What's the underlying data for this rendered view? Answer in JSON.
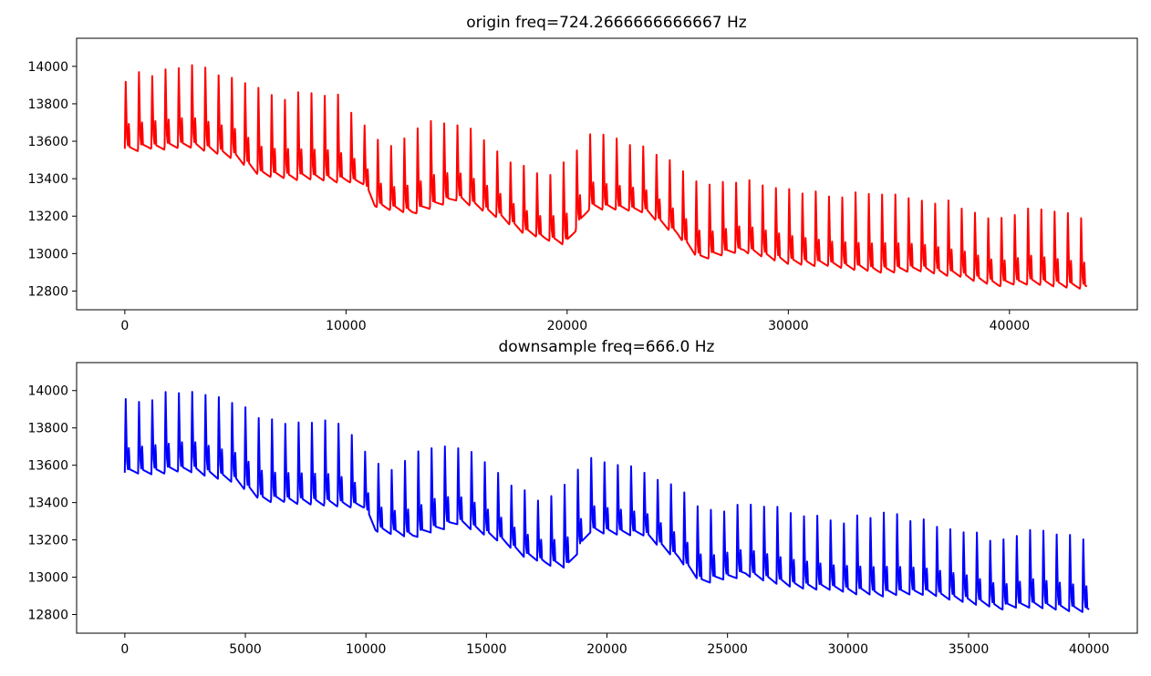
{
  "chart_data": [
    {
      "type": "line",
      "title": "origin freq=724.2666666666667 Hz",
      "xlabel": "",
      "ylabel": "",
      "xlim": [
        -2180,
        45780
      ],
      "ylim": [
        12700,
        14150
      ],
      "xticks": [
        0,
        10000,
        20000,
        30000,
        40000
      ],
      "xtick_labels": [
        "0",
        "10000",
        "20000",
        "30000",
        "40000"
      ],
      "yticks": [
        12800,
        13000,
        13200,
        13400,
        13600,
        13800,
        14000
      ],
      "ytick_labels": [
        "12800",
        "13000",
        "13200",
        "13400",
        "13600",
        "13800",
        "14000"
      ],
      "grid": false,
      "color": "#ff0000",
      "series": [
        {
          "x_range": [
            0,
            43500
          ],
          "beat_period": 600,
          "baseline": [
            [
              0,
              13560
            ],
            [
              3000,
              13580
            ],
            [
              5000,
              13520
            ],
            [
              6200,
              13420
            ],
            [
              9000,
              13400
            ],
            [
              10800,
              13380
            ],
            [
              11300,
              13260
            ],
            [
              13000,
              13220
            ],
            [
              15000,
              13300
            ],
            [
              17000,
              13200
            ],
            [
              18000,
              13120
            ],
            [
              19000,
              13080
            ],
            [
              20000,
              13060
            ],
            [
              21000,
              13250
            ],
            [
              23500,
              13230
            ],
            [
              25000,
              13100
            ],
            [
              26000,
              12980
            ],
            [
              28000,
              13020
            ],
            [
              30000,
              12960
            ],
            [
              32000,
              12940
            ],
            [
              34000,
              12910
            ],
            [
              36000,
              12920
            ],
            [
              38000,
              12880
            ],
            [
              39500,
              12840
            ],
            [
              41000,
              12850
            ],
            [
              43500,
              12820
            ]
          ],
          "peaks": [
            [
              0,
              13980
            ],
            [
              3000,
              14060
            ],
            [
              5000,
              13990
            ],
            [
              6500,
              13880
            ],
            [
              9500,
              13900
            ],
            [
              10800,
              13720
            ],
            [
              12000,
              13600
            ],
            [
              14000,
              13780
            ],
            [
              16000,
              13700
            ],
            [
              17500,
              13520
            ],
            [
              19000,
              13440
            ],
            [
              20000,
              13560
            ],
            [
              21000,
              13680
            ],
            [
              23500,
              13600
            ],
            [
              25000,
              13500
            ],
            [
              26500,
              13400
            ],
            [
              28000,
              13440
            ],
            [
              30000,
              13400
            ],
            [
              32000,
              13340
            ],
            [
              34500,
              13380
            ],
            [
              36000,
              13340
            ],
            [
              38000,
              13300
            ],
            [
              39500,
              13220
            ],
            [
              41000,
              13300
            ],
            [
              43500,
              13240
            ]
          ]
        }
      ]
    },
    {
      "type": "line",
      "title": "downsample freq=666.0 Hz",
      "xlabel": "",
      "ylabel": "",
      "xlim": [
        -2000,
        42000
      ],
      "ylim": [
        12700,
        14150
      ],
      "xticks": [
        0,
        5000,
        10000,
        15000,
        20000,
        25000,
        30000,
        35000,
        40000
      ],
      "xtick_labels": [
        "0",
        "5000",
        "10000",
        "15000",
        "20000",
        "25000",
        "30000",
        "35000",
        "40000"
      ],
      "yticks": [
        12800,
        13000,
        13200,
        13400,
        13600,
        13800,
        14000
      ],
      "ytick_labels": [
        "12800",
        "13000",
        "13200",
        "13400",
        "13600",
        "13800",
        "14000"
      ],
      "grid": false,
      "color": "#0000ff",
      "series": [
        {
          "x_range": [
            0,
            40000
          ],
          "beat_period": 551.7,
          "baseline": [
            [
              0,
              13560
            ],
            [
              2760,
              13580
            ],
            [
              4600,
              13520
            ],
            [
              5700,
              13420
            ],
            [
              8280,
              13400
            ],
            [
              9930,
              13380
            ],
            [
              10400,
              13260
            ],
            [
              11950,
              13220
            ],
            [
              13800,
              13300
            ],
            [
              15640,
              13200
            ],
            [
              16550,
              13120
            ],
            [
              17470,
              13080
            ],
            [
              18390,
              13060
            ],
            [
              19310,
              13250
            ],
            [
              21610,
              13230
            ],
            [
              22990,
              13100
            ],
            [
              23910,
              12980
            ],
            [
              25750,
              13020
            ],
            [
              27590,
              12960
            ],
            [
              29430,
              12940
            ],
            [
              31260,
              12910
            ],
            [
              33100,
              12920
            ],
            [
              34940,
              12880
            ],
            [
              36320,
              12840
            ],
            [
              37700,
              12850
            ],
            [
              40000,
              12820
            ]
          ],
          "peaks": [
            [
              0,
              13980
            ],
            [
              2760,
              14060
            ],
            [
              4600,
              13990
            ],
            [
              5980,
              13880
            ],
            [
              8740,
              13900
            ],
            [
              9930,
              13720
            ],
            [
              11030,
              13600
            ],
            [
              12870,
              13780
            ],
            [
              14710,
              13700
            ],
            [
              16090,
              13520
            ],
            [
              17470,
              13440
            ],
            [
              18390,
              13560
            ],
            [
              19310,
              13680
            ],
            [
              21610,
              13600
            ],
            [
              22990,
              13500
            ],
            [
              24370,
              13400
            ],
            [
              25750,
              13440
            ],
            [
              27590,
              13400
            ],
            [
              29430,
              13340
            ],
            [
              31720,
              13380
            ],
            [
              33100,
              13340
            ],
            [
              34940,
              13300
            ],
            [
              36320,
              13220
            ],
            [
              37700,
              13300
            ],
            [
              40000,
              13240
            ]
          ]
        }
      ]
    }
  ]
}
